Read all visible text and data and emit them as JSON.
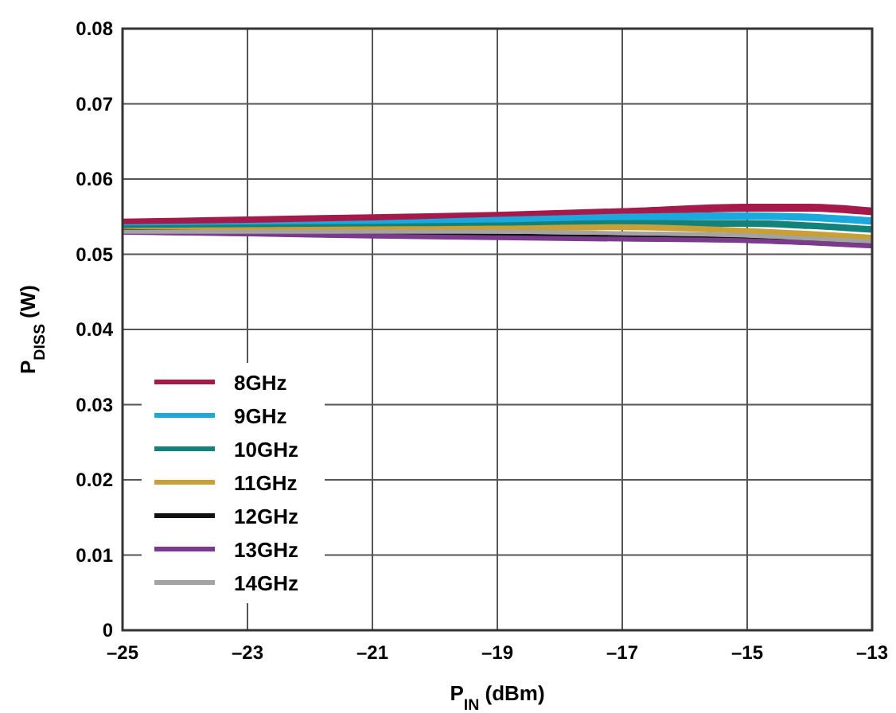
{
  "chart_data": {
    "type": "line",
    "xlabel": "P$_{IN}$ (dBm)",
    "ylabel": "P$_{DISS}$ (W)",
    "x": [
      -25,
      -23,
      -21,
      -19,
      -17,
      -15,
      -14,
      -13
    ],
    "xlim": [
      -25,
      -13
    ],
    "xticks": [
      {
        "value": -25,
        "label": "–25"
      },
      {
        "value": -23,
        "label": "–23"
      },
      {
        "value": -21,
        "label": "–21"
      },
      {
        "value": -19,
        "label": "–19"
      },
      {
        "value": -17,
        "label": "–17"
      },
      {
        "value": -15,
        "label": "–15"
      },
      {
        "value": -13,
        "label": "–13"
      }
    ],
    "ylim": [
      0,
      0.08
    ],
    "yticks": [
      0,
      0.01,
      0.02,
      0.03,
      0.04,
      0.05,
      0.06,
      0.07,
      0.08
    ],
    "grid": true,
    "legend": "bottom left",
    "marker": "none",
    "line_style": "solid",
    "series": [
      {
        "name": "8GHz",
        "color": "#a6194b",
        "values": [
          0.0542,
          0.0545,
          0.0548,
          0.0551,
          0.0556,
          0.0562,
          0.0562,
          0.0557
        ]
      },
      {
        "name": "9GHz",
        "color": "#1ba8dc",
        "values": [
          0.0535,
          0.0537,
          0.054,
          0.0545,
          0.0549,
          0.0551,
          0.0549,
          0.0544
        ]
      },
      {
        "name": "10GHz",
        "color": "#12827a",
        "values": [
          0.0534,
          0.0535,
          0.0536,
          0.0538,
          0.0541,
          0.0541,
          0.0538,
          0.0533
        ]
      },
      {
        "name": "11GHz",
        "color": "#c9a035",
        "values": [
          0.0531,
          0.0532,
          0.0533,
          0.0534,
          0.0536,
          0.0531,
          0.0527,
          0.0522
        ]
      },
      {
        "name": "12GHz",
        "color": "#111111",
        "values": [
          0.053,
          0.0528,
          0.0526,
          0.0524,
          0.0522,
          0.0519,
          0.0516,
          0.0512
        ]
      },
      {
        "name": "13GHz",
        "color": "#7b3a8c",
        "values": [
          0.0529,
          0.0527,
          0.0524,
          0.0522,
          0.052,
          0.0518,
          0.0515,
          0.0511
        ]
      },
      {
        "name": "14GHz",
        "color": "#a3a3a3",
        "values": [
          0.053,
          0.053,
          0.053,
          0.053,
          0.0528,
          0.0525,
          0.0521,
          0.0517
        ]
      }
    ]
  }
}
